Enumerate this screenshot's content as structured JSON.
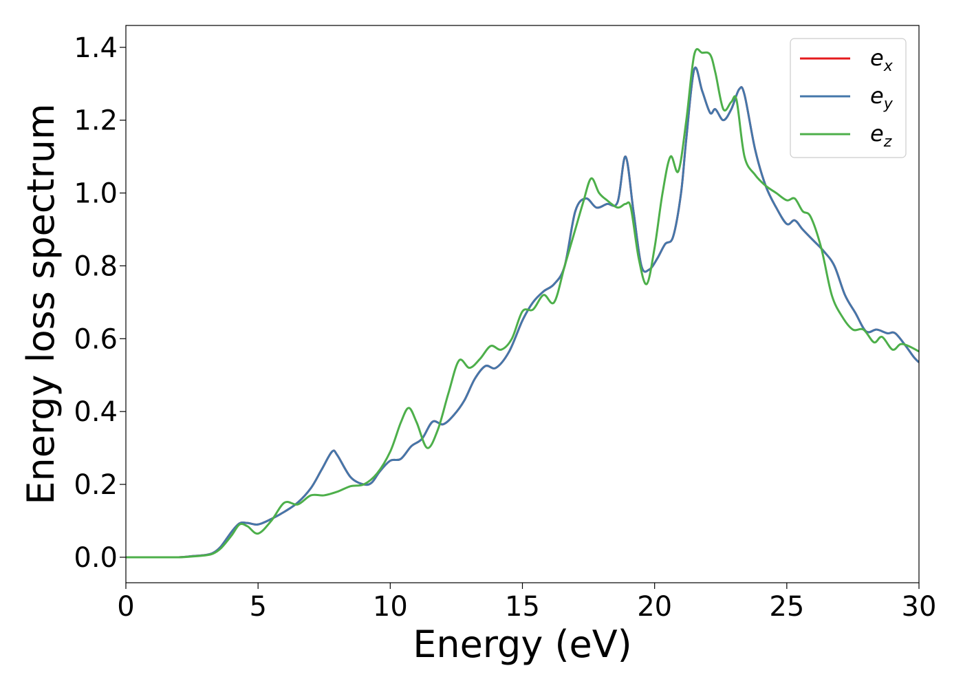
{
  "chart_data": {
    "type": "line",
    "xlabel": "Energy (eV)",
    "ylabel": "Energy loss spectrum",
    "xlim": [
      0,
      30
    ],
    "ylim": [
      -0.07,
      1.46
    ],
    "xticks": [
      0,
      5,
      10,
      15,
      20,
      25,
      30
    ],
    "yticks": [
      0.0,
      0.2,
      0.4,
      0.6,
      0.8,
      1.0,
      1.2,
      1.4
    ],
    "xtick_labels": [
      "0",
      "5",
      "10",
      "15",
      "20",
      "25",
      "30"
    ],
    "ytick_labels": [
      "0.0",
      "0.2",
      "0.4",
      "0.6",
      "0.8",
      "1.0",
      "1.2",
      "1.4"
    ],
    "grid": false,
    "legend_position": "top-right",
    "series": [
      {
        "name": "e_x",
        "legend_base": "e",
        "legend_sub": "x",
        "color": "#e41a1c",
        "x": [
          0,
          1,
          2,
          2.5,
          3,
          3.3,
          3.6,
          4.0,
          4.3,
          4.6,
          5.0,
          5.5,
          6.0,
          6.5,
          7.0,
          7.4,
          7.8,
          8.0,
          8.5,
          9.0,
          9.3,
          9.6,
          10.0,
          10.4,
          10.8,
          11.2,
          11.6,
          12.0,
          12.4,
          12.8,
          13.2,
          13.6,
          14.0,
          14.5,
          15.0,
          15.4,
          15.8,
          16.2,
          16.6,
          17.0,
          17.4,
          17.8,
          18.2,
          18.6,
          18.9,
          19.2,
          19.5,
          19.8,
          20.1,
          20.4,
          20.7,
          21.0,
          21.2,
          21.5,
          21.8,
          22.1,
          22.3,
          22.6,
          22.9,
          23.2,
          23.4,
          23.8,
          24.2,
          24.6,
          25.0,
          25.3,
          25.6,
          26.0,
          26.4,
          26.8,
          27.2,
          27.6,
          28.0,
          28.4,
          28.8,
          29.1,
          29.5,
          29.8,
          30.0
        ],
        "y": [
          0.0,
          0.0,
          0.0,
          0.003,
          0.006,
          0.012,
          0.03,
          0.07,
          0.093,
          0.094,
          0.09,
          0.105,
          0.125,
          0.15,
          0.19,
          0.24,
          0.29,
          0.28,
          0.22,
          0.2,
          0.205,
          0.235,
          0.265,
          0.27,
          0.305,
          0.325,
          0.372,
          0.365,
          0.39,
          0.43,
          0.49,
          0.525,
          0.52,
          0.565,
          0.65,
          0.7,
          0.73,
          0.75,
          0.8,
          0.95,
          0.985,
          0.96,
          0.97,
          0.975,
          1.1,
          0.95,
          0.8,
          0.79,
          0.82,
          0.86,
          0.88,
          1.0,
          1.15,
          1.34,
          1.28,
          1.22,
          1.23,
          1.2,
          1.23,
          1.285,
          1.27,
          1.12,
          1.02,
          0.96,
          0.915,
          0.925,
          0.9,
          0.87,
          0.84,
          0.8,
          0.72,
          0.67,
          0.62,
          0.625,
          0.615,
          0.615,
          0.58,
          0.55,
          0.535
        ]
      },
      {
        "name": "e_y",
        "legend_base": "e",
        "legend_sub": "y",
        "color": "#4477aa",
        "x": [
          0,
          1,
          2,
          2.5,
          3,
          3.3,
          3.6,
          4.0,
          4.3,
          4.6,
          5.0,
          5.5,
          6.0,
          6.5,
          7.0,
          7.4,
          7.8,
          8.0,
          8.5,
          9.0,
          9.3,
          9.6,
          10.0,
          10.4,
          10.8,
          11.2,
          11.6,
          12.0,
          12.4,
          12.8,
          13.2,
          13.6,
          14.0,
          14.5,
          15.0,
          15.4,
          15.8,
          16.2,
          16.6,
          17.0,
          17.4,
          17.8,
          18.2,
          18.6,
          18.9,
          19.2,
          19.5,
          19.8,
          20.1,
          20.4,
          20.7,
          21.0,
          21.2,
          21.5,
          21.8,
          22.1,
          22.3,
          22.6,
          22.9,
          23.2,
          23.4,
          23.8,
          24.2,
          24.6,
          25.0,
          25.3,
          25.6,
          26.0,
          26.4,
          26.8,
          27.2,
          27.6,
          28.0,
          28.4,
          28.8,
          29.1,
          29.5,
          29.8,
          30.0
        ],
        "y": [
          0.0,
          0.0,
          0.0,
          0.003,
          0.006,
          0.012,
          0.03,
          0.07,
          0.093,
          0.094,
          0.09,
          0.105,
          0.125,
          0.15,
          0.19,
          0.24,
          0.29,
          0.28,
          0.22,
          0.2,
          0.205,
          0.235,
          0.265,
          0.27,
          0.305,
          0.325,
          0.372,
          0.365,
          0.39,
          0.43,
          0.49,
          0.525,
          0.52,
          0.565,
          0.65,
          0.7,
          0.73,
          0.75,
          0.8,
          0.95,
          0.985,
          0.96,
          0.97,
          0.975,
          1.1,
          0.95,
          0.8,
          0.79,
          0.82,
          0.86,
          0.88,
          1.0,
          1.15,
          1.34,
          1.28,
          1.22,
          1.23,
          1.2,
          1.23,
          1.285,
          1.27,
          1.12,
          1.02,
          0.96,
          0.915,
          0.925,
          0.9,
          0.87,
          0.84,
          0.8,
          0.72,
          0.67,
          0.62,
          0.625,
          0.615,
          0.615,
          0.58,
          0.55,
          0.535
        ]
      },
      {
        "name": "e_z",
        "legend_base": "e",
        "legend_sub": "z",
        "color": "#4daf4a",
        "x": [
          0,
          1,
          2,
          2.5,
          3,
          3.3,
          3.6,
          4.0,
          4.3,
          4.6,
          5.0,
          5.5,
          6.0,
          6.5,
          7.0,
          7.5,
          8.0,
          8.5,
          9.0,
          9.5,
          10.0,
          10.4,
          10.7,
          11.0,
          11.4,
          11.8,
          12.2,
          12.6,
          13.0,
          13.4,
          13.8,
          14.2,
          14.6,
          15.0,
          15.4,
          15.8,
          16.2,
          16.6,
          17.0,
          17.3,
          17.6,
          17.9,
          18.2,
          18.6,
          18.9,
          19.1,
          19.4,
          19.7,
          20.0,
          20.3,
          20.6,
          20.9,
          21.2,
          21.5,
          21.8,
          22.1,
          22.3,
          22.6,
          22.9,
          23.1,
          23.4,
          23.8,
          24.2,
          24.6,
          25.0,
          25.3,
          25.6,
          25.9,
          26.3,
          26.7,
          27.1,
          27.5,
          27.9,
          28.3,
          28.6,
          29.0,
          29.3,
          29.6,
          30.0
        ],
        "y": [
          0.0,
          0.0,
          0.0,
          0.002,
          0.005,
          0.01,
          0.025,
          0.06,
          0.09,
          0.085,
          0.065,
          0.1,
          0.15,
          0.145,
          0.17,
          0.17,
          0.18,
          0.195,
          0.2,
          0.23,
          0.29,
          0.37,
          0.41,
          0.37,
          0.3,
          0.35,
          0.45,
          0.54,
          0.52,
          0.545,
          0.58,
          0.57,
          0.6,
          0.675,
          0.68,
          0.72,
          0.7,
          0.8,
          0.9,
          0.975,
          1.04,
          1.0,
          0.98,
          0.96,
          0.97,
          0.96,
          0.82,
          0.75,
          0.85,
          1.0,
          1.1,
          1.06,
          1.2,
          1.38,
          1.385,
          1.38,
          1.33,
          1.23,
          1.25,
          1.255,
          1.1,
          1.05,
          1.02,
          1.0,
          0.98,
          0.985,
          0.95,
          0.935,
          0.85,
          0.72,
          0.66,
          0.625,
          0.625,
          0.59,
          0.605,
          0.57,
          0.585,
          0.58,
          0.565
        ]
      }
    ]
  }
}
